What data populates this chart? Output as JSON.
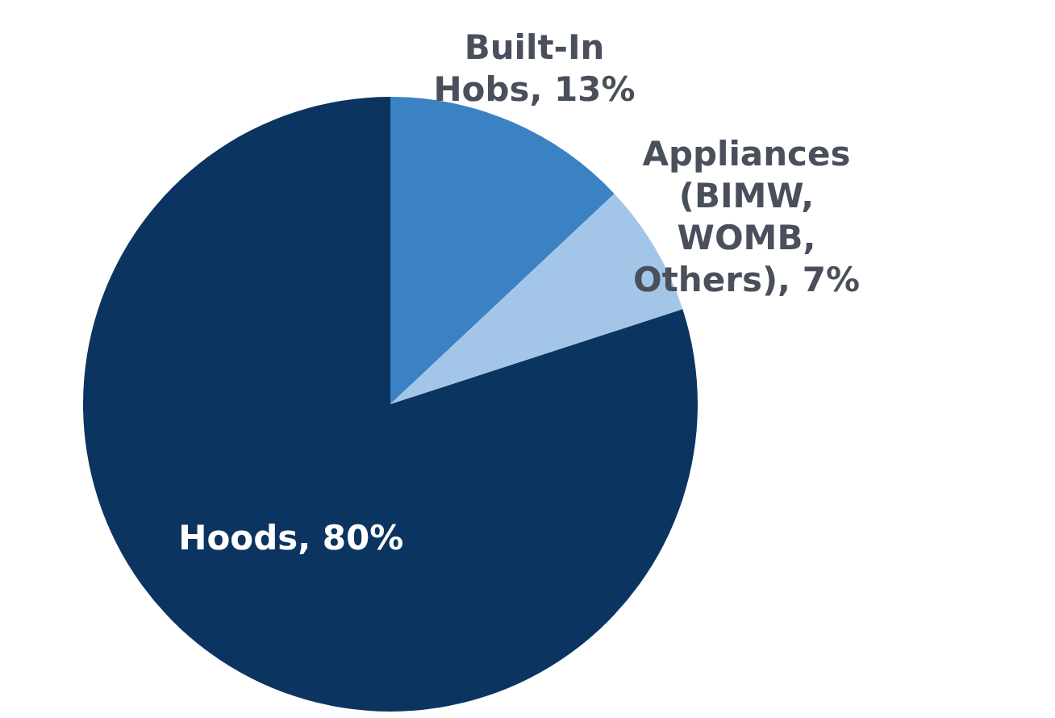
{
  "chart_data": {
    "type": "pie",
    "categories": [
      "Built-In Hobs",
      "Appliances (BIMW, WOMB, Others)",
      "Hoods"
    ],
    "values": [
      13,
      7,
      80
    ],
    "colors": [
      "#3b82c4",
      "#a3c6e8",
      "#0b3560"
    ],
    "value_labels": [
      "13%",
      "7%",
      "80%"
    ],
    "legend": false
  }
}
